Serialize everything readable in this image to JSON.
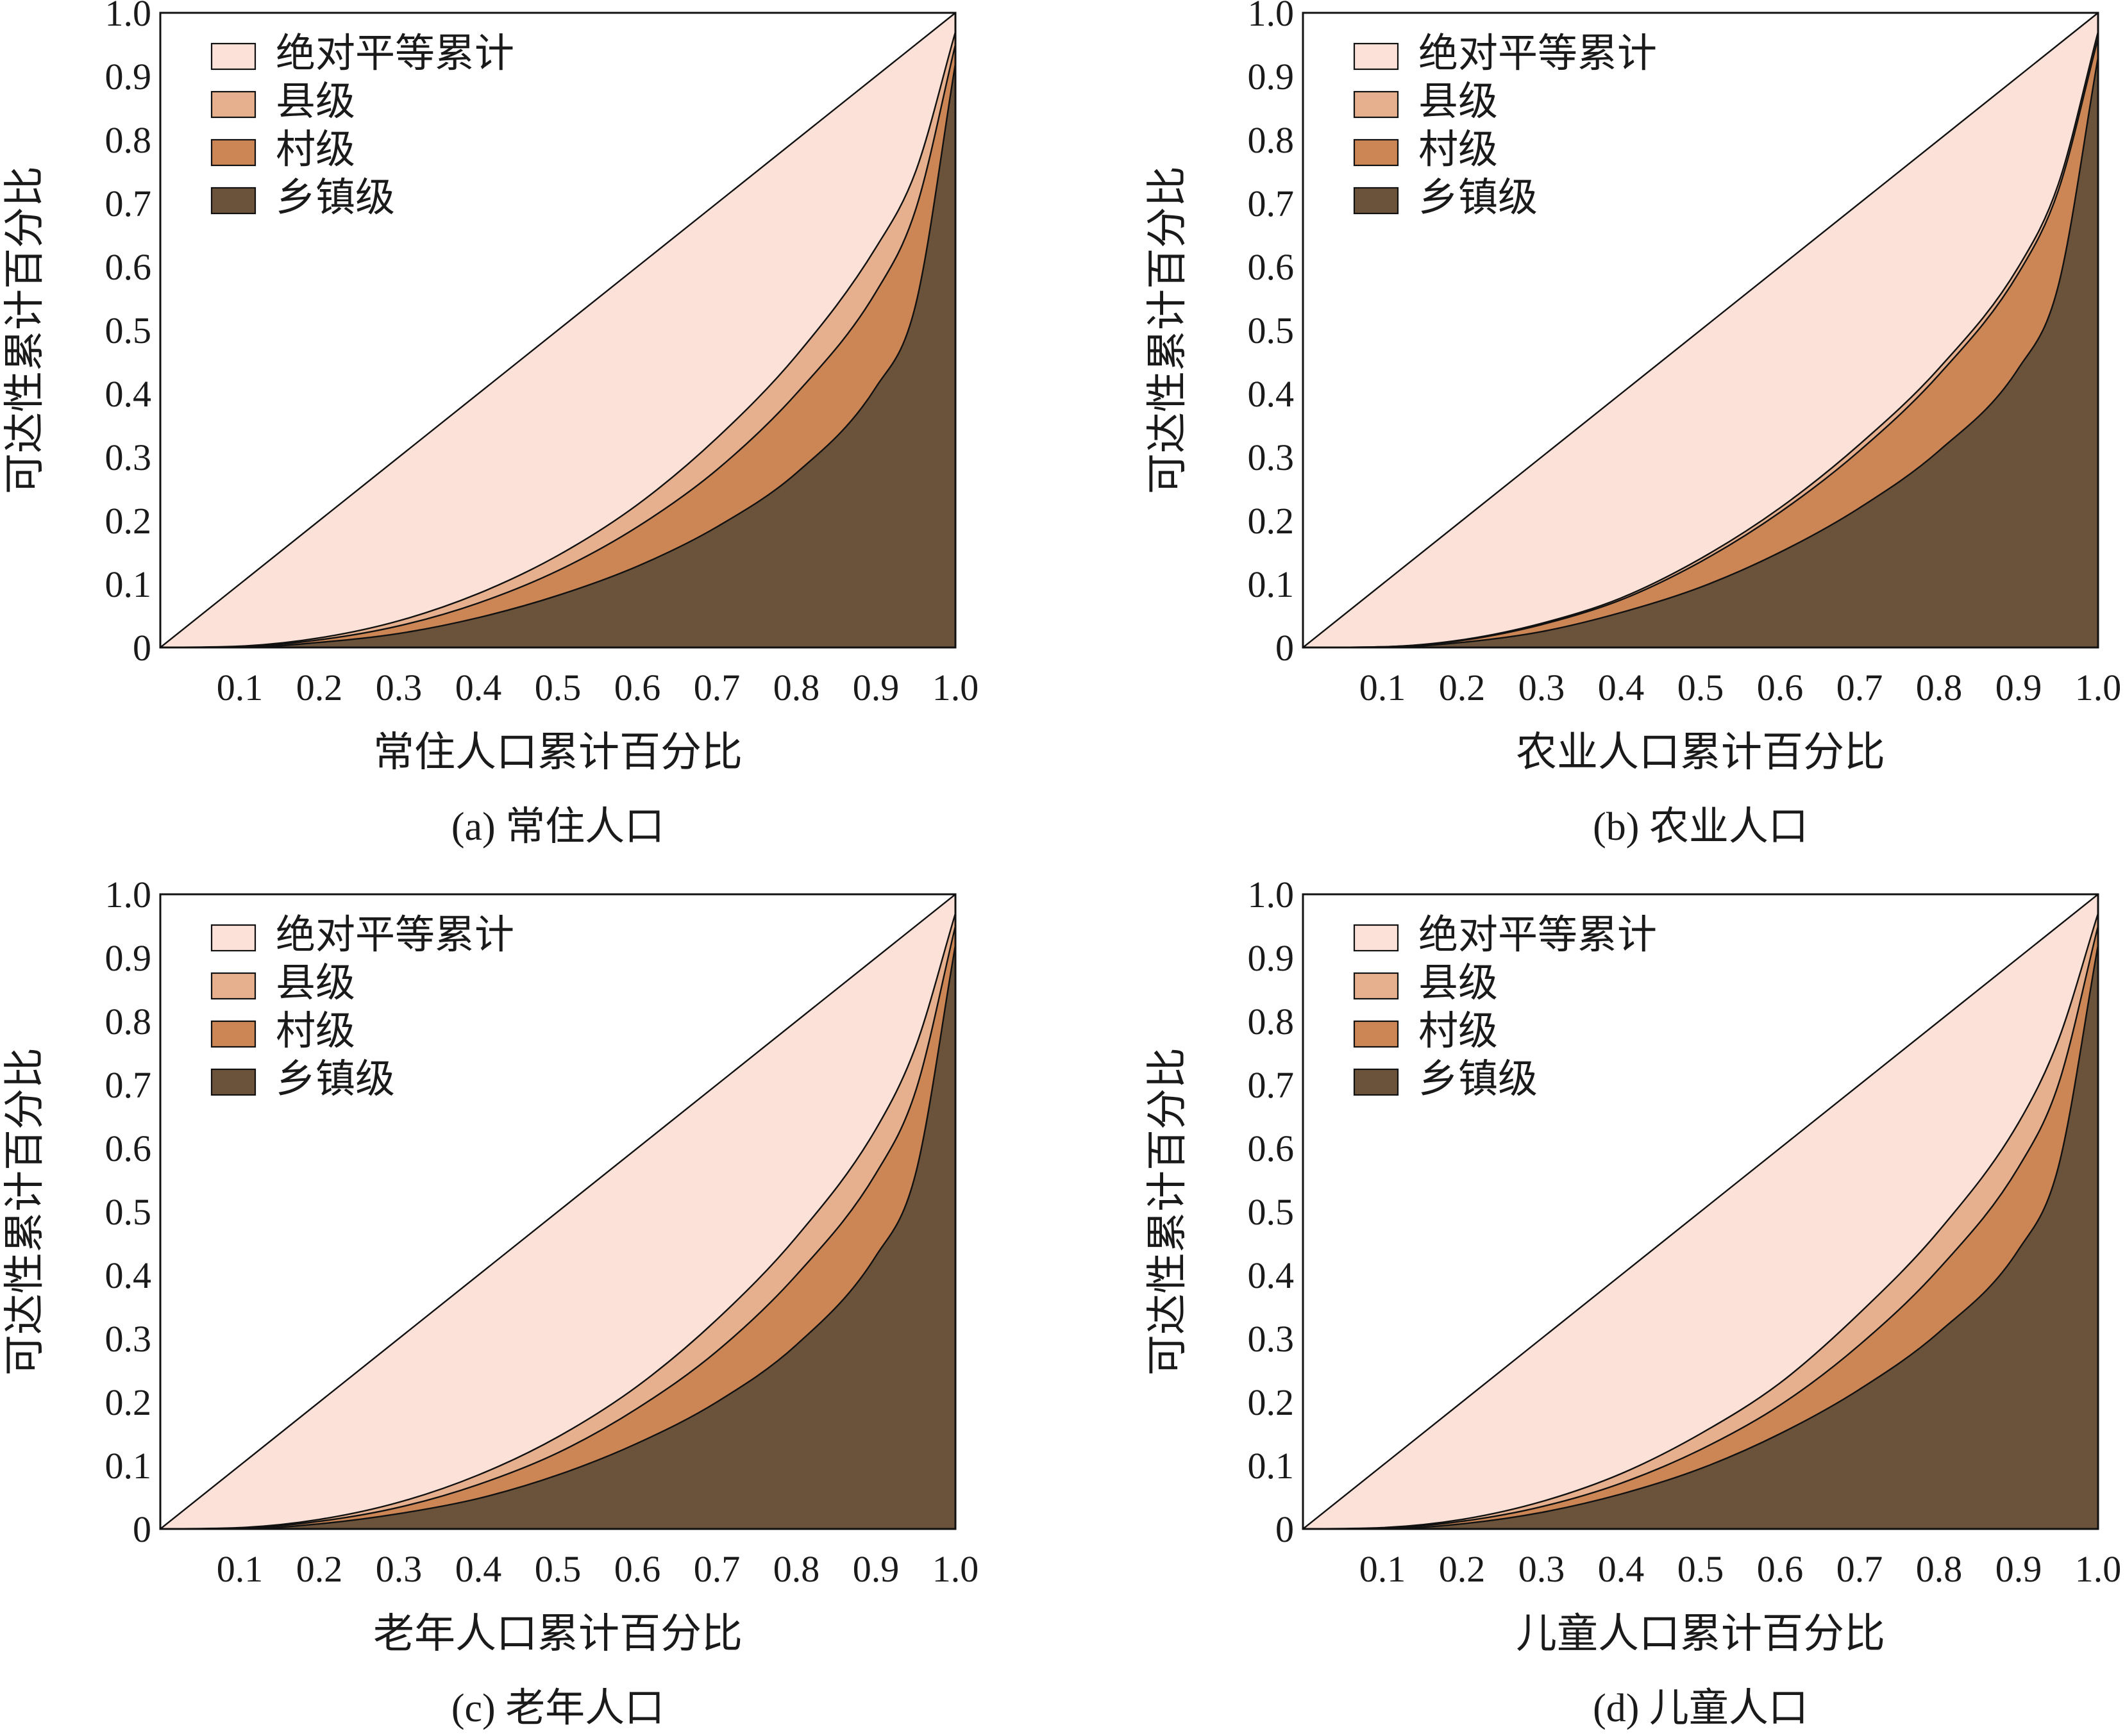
{
  "colors": {
    "equality": "#fbe1d7",
    "county": "#e6b08e",
    "village": "#cc8655",
    "township": "#6b533b",
    "stroke": "#111111"
  },
  "chart_data": [
    {
      "type": "area",
      "caption": "(a) 常住人口",
      "xlabel": "常住人口累计百分比",
      "ylabel": "可达性累计百分比",
      "xlim": [
        0,
        1.0
      ],
      "ylim": [
        0,
        1.0
      ],
      "xticks": [
        "0.1",
        "0.2",
        "0.3",
        "0.4",
        "0.5",
        "0.6",
        "0.7",
        "0.8",
        "0.9",
        "1.0"
      ],
      "yticks": [
        "0",
        "0.1",
        "0.2",
        "0.3",
        "0.4",
        "0.5",
        "0.6",
        "0.7",
        "0.8",
        "0.9",
        "1.0"
      ],
      "legend_position": "top-left",
      "x": [
        0,
        0.1,
        0.2,
        0.3,
        0.4,
        0.5,
        0.6,
        0.7,
        0.8,
        0.9,
        0.95,
        1.0
      ],
      "series": [
        {
          "name": "绝对平等累计",
          "y": [
            0,
            0.1,
            0.2,
            0.3,
            0.4,
            0.5,
            0.6,
            0.7,
            0.8,
            0.9,
            0.95,
            1.0
          ]
        },
        {
          "name": "县级",
          "y": [
            0,
            0.002,
            0.015,
            0.042,
            0.085,
            0.145,
            0.225,
            0.33,
            0.46,
            0.63,
            0.75,
            0.97
          ]
        },
        {
          "name": "村级",
          "y": [
            0,
            0.001,
            0.012,
            0.034,
            0.07,
            0.121,
            0.19,
            0.28,
            0.4,
            0.56,
            0.69,
            0.95
          ]
        },
        {
          "name": "乡镇级",
          "y": [
            0,
            0.0,
            0.008,
            0.022,
            0.047,
            0.082,
            0.128,
            0.19,
            0.275,
            0.41,
            0.54,
            0.92
          ]
        }
      ]
    },
    {
      "type": "area",
      "caption": "(b) 农业人口",
      "xlabel": "农业人口累计百分比",
      "ylabel": "可达性累计百分比",
      "xlim": [
        0,
        1.0
      ],
      "ylim": [
        0,
        1.0
      ],
      "xticks": [
        "0.1",
        "0.2",
        "0.3",
        "0.4",
        "0.5",
        "0.6",
        "0.7",
        "0.8",
        "0.9",
        "1.0"
      ],
      "yticks": [
        "0",
        "0.1",
        "0.2",
        "0.3",
        "0.4",
        "0.5",
        "0.6",
        "0.7",
        "0.8",
        "0.9",
        "1.0"
      ],
      "legend_position": "top-left",
      "x": [
        0,
        0.1,
        0.2,
        0.3,
        0.4,
        0.5,
        0.6,
        0.7,
        0.8,
        0.9,
        0.95,
        1.0
      ],
      "series": [
        {
          "name": "绝对平等累计",
          "y": [
            0,
            0.1,
            0.2,
            0.3,
            0.4,
            0.5,
            0.6,
            0.7,
            0.8,
            0.9,
            0.95,
            1.0
          ]
        },
        {
          "name": "县级",
          "y": [
            0,
            0.001,
            0.012,
            0.038,
            0.078,
            0.14,
            0.22,
            0.32,
            0.44,
            0.6,
            0.73,
            0.97
          ]
        },
        {
          "name": "村级",
          "y": [
            0,
            0.001,
            0.011,
            0.036,
            0.075,
            0.135,
            0.213,
            0.31,
            0.43,
            0.59,
            0.72,
            0.96
          ]
        },
        {
          "name": "乡镇级",
          "y": [
            0,
            0.0,
            0.008,
            0.025,
            0.055,
            0.095,
            0.15,
            0.22,
            0.31,
            0.44,
            0.57,
            0.93
          ]
        }
      ]
    },
    {
      "type": "area",
      "caption": "(c) 老年人口",
      "xlabel": "老年人口累计百分比",
      "ylabel": "可达性累计百分比",
      "xlim": [
        0,
        1.0
      ],
      "ylim": [
        0,
        1.0
      ],
      "xticks": [
        "0.1",
        "0.2",
        "0.3",
        "0.4",
        "0.5",
        "0.6",
        "0.7",
        "0.8",
        "0.9",
        "1.0"
      ],
      "yticks": [
        "0",
        "0.1",
        "0.2",
        "0.3",
        "0.4",
        "0.5",
        "0.6",
        "0.7",
        "0.8",
        "0.9",
        "1.0"
      ],
      "legend_position": "top-left",
      "x": [
        0,
        0.1,
        0.2,
        0.3,
        0.4,
        0.5,
        0.6,
        0.7,
        0.8,
        0.9,
        0.95,
        1.0
      ],
      "series": [
        {
          "name": "绝对平等累计",
          "y": [
            0,
            0.1,
            0.2,
            0.3,
            0.4,
            0.5,
            0.6,
            0.7,
            0.8,
            0.9,
            0.95,
            1.0
          ]
        },
        {
          "name": "县级",
          "y": [
            0,
            0.002,
            0.015,
            0.042,
            0.085,
            0.145,
            0.225,
            0.33,
            0.46,
            0.63,
            0.76,
            0.97
          ]
        },
        {
          "name": "村级",
          "y": [
            0,
            0.001,
            0.012,
            0.034,
            0.07,
            0.12,
            0.19,
            0.28,
            0.4,
            0.56,
            0.69,
            0.95
          ]
        },
        {
          "name": "乡镇级",
          "y": [
            0,
            0.0,
            0.008,
            0.024,
            0.048,
            0.085,
            0.135,
            0.2,
            0.29,
            0.43,
            0.56,
            0.92
          ]
        }
      ]
    },
    {
      "type": "area",
      "caption": "(d) 儿童人口",
      "xlabel": "儿童人口累计百分比",
      "ylabel": "可达性累计百分比",
      "xlim": [
        0,
        1.0
      ],
      "ylim": [
        0,
        1.0
      ],
      "xticks": [
        "0.1",
        "0.2",
        "0.3",
        "0.4",
        "0.5",
        "0.6",
        "0.7",
        "0.8",
        "0.9",
        "1.0"
      ],
      "yticks": [
        "0",
        "0.1",
        "0.2",
        "0.3",
        "0.4",
        "0.5",
        "0.6",
        "0.7",
        "0.8",
        "0.9",
        "1.0"
      ],
      "legend_position": "top-left",
      "x": [
        0,
        0.1,
        0.2,
        0.3,
        0.4,
        0.5,
        0.6,
        0.7,
        0.8,
        0.9,
        0.95,
        1.0
      ],
      "series": [
        {
          "name": "绝对平等累计",
          "y": [
            0,
            0.1,
            0.2,
            0.3,
            0.4,
            0.5,
            0.6,
            0.7,
            0.8,
            0.9,
            0.95,
            1.0
          ]
        },
        {
          "name": "县级",
          "y": [
            0,
            0.002,
            0.015,
            0.043,
            0.087,
            0.15,
            0.23,
            0.34,
            0.47,
            0.64,
            0.77,
            0.97
          ]
        },
        {
          "name": "村级",
          "y": [
            0,
            0.001,
            0.012,
            0.035,
            0.072,
            0.125,
            0.195,
            0.29,
            0.41,
            0.57,
            0.7,
            0.95
          ]
        },
        {
          "name": "乡镇级",
          "y": [
            0,
            0.0,
            0.008,
            0.026,
            0.055,
            0.095,
            0.15,
            0.22,
            0.31,
            0.44,
            0.57,
            0.92
          ]
        }
      ]
    }
  ]
}
